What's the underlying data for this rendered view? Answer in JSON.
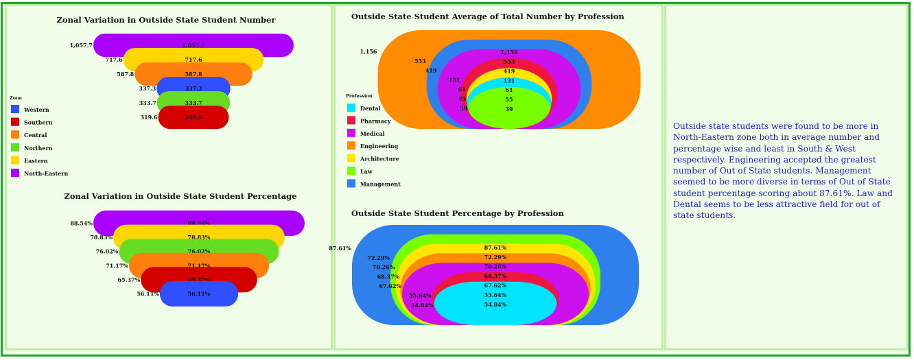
{
  "colors": {
    "North-Eastern": "#aa00ff",
    "Eastern": "#ffd700",
    "Central": "#ff7f0e",
    "Western": "#3050ff",
    "Northern": "#66dd22",
    "Southern": "#d40000",
    "Management": "#2f80ed",
    "Engineering": "#ff8c00",
    "Medical": "#cc11ee",
    "Pharmacy": "#ee1744",
    "Architecture": "#ffe600",
    "Law": "#77ff00",
    "Dental": "#00e5ff"
  },
  "chart_data": [
    {
      "type": "bar",
      "title": "Zonal Variation in Outside State Student Number",
      "categories": [
        "North-Eastern",
        "Eastern",
        "Central",
        "Western",
        "Northern",
        "Southern"
      ],
      "values": [
        1057.7,
        717.6,
        587.8,
        337.3,
        333.7,
        319.6
      ],
      "labels": [
        "1,057.7",
        "717.6",
        "587.8",
        "337.3",
        "333.7",
        "319.6"
      ],
      "legend": {
        "title": "Zone",
        "items": [
          "Western",
          "Southern",
          "Central",
          "Northern",
          "Eastern",
          "North-Eastern"
        ],
        "placement": "left"
      }
    },
    {
      "type": "bar",
      "title": "Zonal Variation in Outside State Student Percentage",
      "categories": [
        "North-Eastern",
        "Eastern",
        "Northern",
        "Central",
        "Southern",
        "Western"
      ],
      "values": [
        88.54,
        78.83,
        76.02,
        71.17,
        65.37,
        56.11
      ],
      "labels": [
        "88.54%",
        "78.83%",
        "76.02%",
        "71.17%",
        "65.37%",
        "56.11%"
      ]
    },
    {
      "type": "bar",
      "title": "Outside State Student Average of Total Number by Profession",
      "categories": [
        "Engineering",
        "Management",
        "Medical",
        "Pharmacy",
        "Architecture",
        "Dental",
        "Law"
      ],
      "values": [
        1156,
        553,
        419,
        131,
        61,
        55,
        39
      ],
      "labels": [
        "1,156",
        "553",
        "419",
        "131",
        "61",
        "55",
        "39"
      ],
      "legend": {
        "title": "Profession",
        "items": [
          "Dental",
          "Pharmacy",
          "Medical",
          "Engineering",
          "Architecture",
          "Law",
          "Management"
        ],
        "placement": "left"
      }
    },
    {
      "type": "bar",
      "title": "Outside State Student Percentage by Profession",
      "categories": [
        "Management",
        "Law",
        "Architecture",
        "Engineering",
        "Medical",
        "Pharmacy",
        "Dental"
      ],
      "values": [
        87.61,
        72.29,
        70.26,
        68.37,
        67.62,
        55.64,
        54.84
      ],
      "labels": [
        "87.61%",
        "72.29%",
        "70.26%",
        "68.37%",
        "67.62%",
        "55.64%",
        "54.84%"
      ]
    }
  ],
  "note": "Outside state students were found to be more in North-Eastern zone both in average number and percentage wise and least in South & West respectively. Engineering accepted the greatest number of Out of State students. Management seemed to be more diverse in terms of Out of State student percentage scoring about 87.61%. Law and Dental seems to be less attractive field for out of state students."
}
